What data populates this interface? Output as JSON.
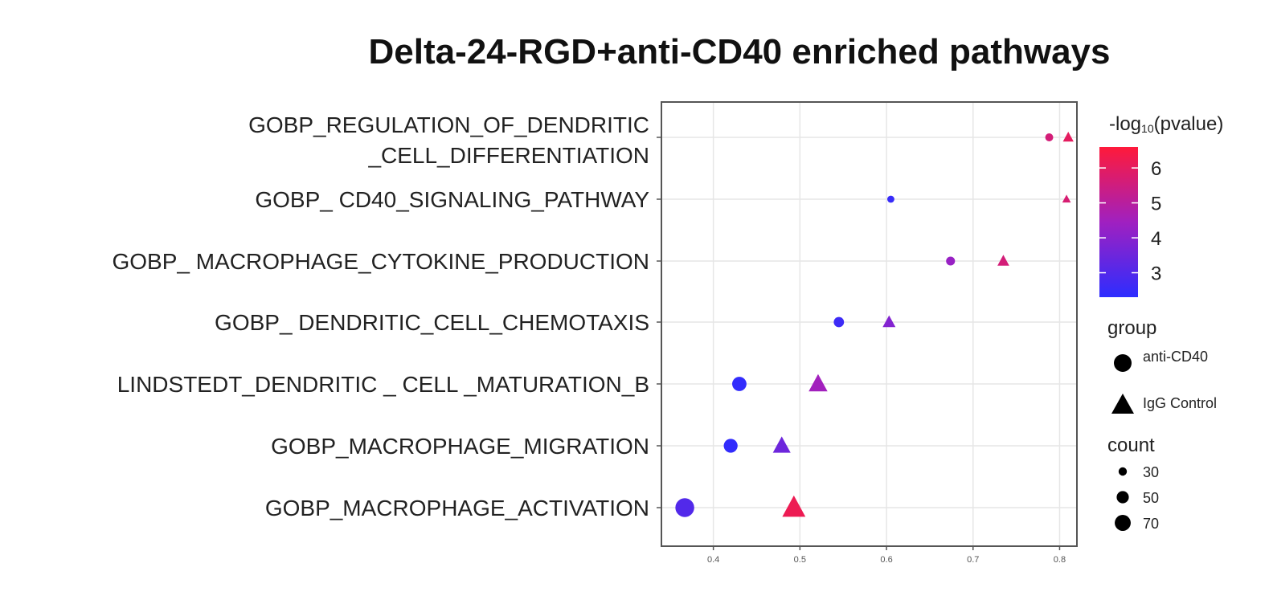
{
  "chart_data": {
    "type": "scatter",
    "title": "Delta-24-RGD+anti-CD40 enriched pathways",
    "xlabel": "",
    "ylabel": "",
    "xlim": [
      0.34,
      0.82
    ],
    "x_ticks": [
      "0.4",
      "0.5",
      "0.6",
      "0.7",
      "0.8"
    ],
    "x_tick_values": [
      0.4,
      0.5,
      0.6,
      0.7,
      0.8
    ],
    "grid": true,
    "categories": [
      [
        "GOBP_REGULATION_OF_DENDRITIC",
        "_CELL_DIFFERENTIATION"
      ],
      [
        "GOBP_ CD40_SIGNALING_PATHWAY"
      ],
      [
        "GOBP_ MACROPHAGE_CYTOKINE_PRODUCTION"
      ],
      [
        "GOBP_ DENDRITIC_CELL_CHEMOTAXIS"
      ],
      [
        "LINDSTEDT_DENDRITIC  _ CELL _MATURATION_B"
      ],
      [
        "GOBP_MACROPHAGE_MIGRATION"
      ],
      [
        "GOBP_MACROPHAGE_ACTIVATION"
      ]
    ],
    "series": [
      {
        "name": "anti-CD40",
        "shape": "circle",
        "points": [
          {
            "category": 0,
            "x": 0.788,
            "pvalue_log": 5.6,
            "count": 22
          },
          {
            "category": 1,
            "x": 0.605,
            "pvalue_log": 2.5,
            "count": 18
          },
          {
            "category": 2,
            "x": 0.674,
            "pvalue_log": 4.3,
            "count": 26
          },
          {
            "category": 3,
            "x": 0.545,
            "pvalue_log": 2.6,
            "count": 32
          },
          {
            "category": 4,
            "x": 0.43,
            "pvalue_log": 2.4,
            "count": 50
          },
          {
            "category": 5,
            "x": 0.42,
            "pvalue_log": 2.4,
            "count": 48
          },
          {
            "category": 6,
            "x": 0.367,
            "pvalue_log": 3.0,
            "count": 70
          }
        ]
      },
      {
        "name": "IgG Control",
        "shape": "triangle",
        "points": [
          {
            "category": 0,
            "x": 0.81,
            "pvalue_log": 6.0,
            "count": 26
          },
          {
            "category": 1,
            "x": 0.808,
            "pvalue_log": 5.7,
            "count": 18
          },
          {
            "category": 2,
            "x": 0.735,
            "pvalue_log": 5.6,
            "count": 30
          },
          {
            "category": 3,
            "x": 0.603,
            "pvalue_log": 3.9,
            "count": 34
          },
          {
            "category": 4,
            "x": 0.521,
            "pvalue_log": 4.5,
            "count": 56
          },
          {
            "category": 5,
            "x": 0.479,
            "pvalue_log": 3.5,
            "count": 52
          },
          {
            "category": 6,
            "x": 0.493,
            "pvalue_log": 6.2,
            "count": 72
          }
        ]
      }
    ],
    "color_legend": {
      "title_prefix": "-log",
      "title_sub": "10",
      "title_suffix": "(pvalue)",
      "min": 2.3,
      "max": 6.6,
      "ticks": [
        3,
        4,
        5,
        6
      ],
      "low_color": "#2d2dff",
      "mid_color": "#a020c0",
      "high_color": "#ff1a3a"
    },
    "shape_legend": {
      "title": "group",
      "items": [
        {
          "label": "anti-CD40",
          "shape": "circle"
        },
        {
          "label": "IgG Control",
          "shape": "triangle"
        }
      ]
    },
    "size_legend": {
      "title": "count",
      "items": [
        {
          "label": "30",
          "count": 30
        },
        {
          "label": "50",
          "count": 50
        },
        {
          "label": "70",
          "count": 70
        }
      ]
    }
  }
}
